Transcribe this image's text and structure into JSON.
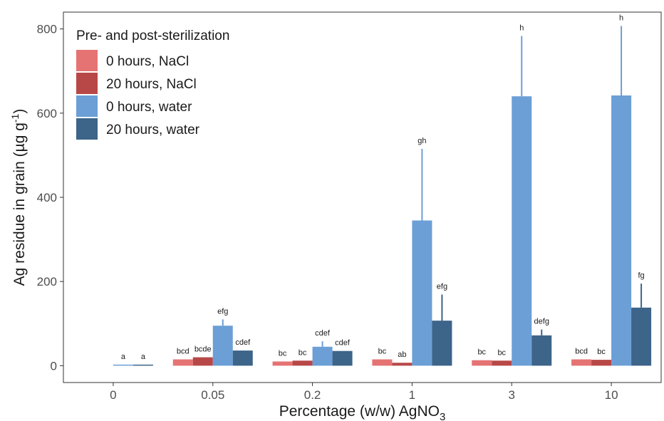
{
  "chart_data": {
    "type": "bar",
    "title": "",
    "xlabel_main": "Percentage (w/w) AgNO",
    "xlabel_sub": "3",
    "ylabel_main": "Ag residue in grain (µg g",
    "ylabel_sup": "-1",
    "ylabel_end": ")",
    "ylim": [
      -40,
      840
    ],
    "yticks": [
      0,
      200,
      400,
      600,
      800
    ],
    "categories": [
      "0",
      "0.05",
      "0.2",
      "1",
      "3",
      "10"
    ],
    "legend": {
      "title": "Pre- and post-sterilization",
      "position": "top-left"
    },
    "series": [
      {
        "name": "0 hours, NaCl",
        "color": "#e57373",
        "values": [
          null,
          15,
          10,
          15,
          13,
          15
        ],
        "errors": [
          null,
          0,
          0,
          0,
          0,
          0
        ],
        "labels": [
          "",
          "bcd",
          "bc",
          "bc",
          "bc",
          "bcd"
        ]
      },
      {
        "name": "20 hours, NaCl",
        "color": "#b84848",
        "values": [
          null,
          20,
          12,
          7,
          12,
          14
        ],
        "errors": [
          null,
          0,
          0,
          0,
          0,
          0
        ],
        "labels": [
          "",
          "bcde",
          "bc",
          "ab",
          "bc",
          "bc"
        ]
      },
      {
        "name": "0 hours, water",
        "color": "#6b9fd6",
        "values": [
          2,
          95,
          45,
          345,
          640,
          642
        ],
        "errors": [
          0,
          15,
          13,
          170,
          143,
          165
        ],
        "labels": [
          "a",
          "efg",
          "cdef",
          "gh",
          "h",
          "h"
        ]
      },
      {
        "name": "20 hours, water",
        "color": "#3d6489",
        "values": [
          2,
          36,
          35,
          107,
          72,
          138
        ],
        "errors": [
          0,
          0,
          0,
          62,
          14,
          57
        ],
        "labels": [
          "a",
          "cdef",
          "cdef",
          "efg",
          "defg",
          "fg"
        ]
      }
    ]
  }
}
